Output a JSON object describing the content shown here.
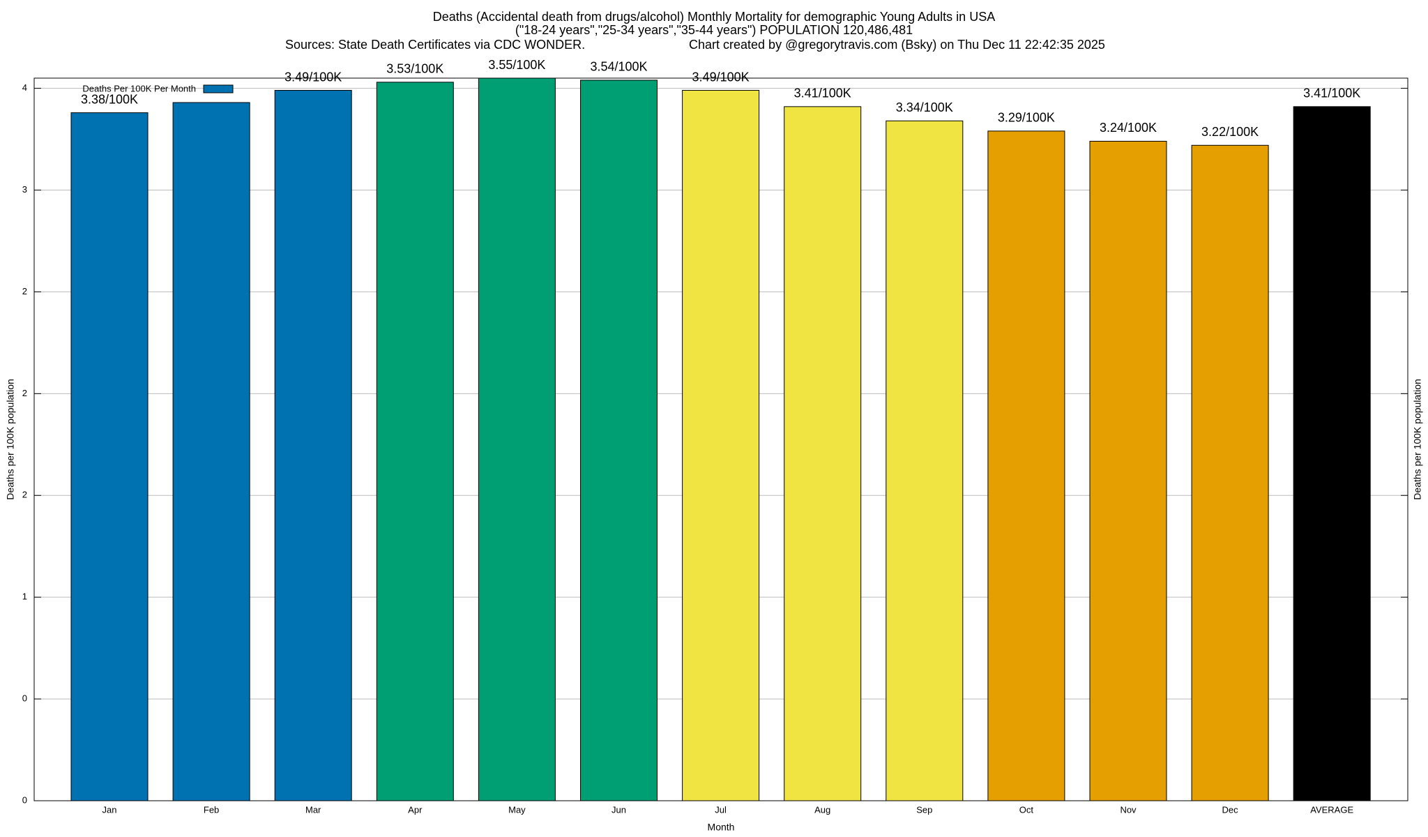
{
  "chart_data": {
    "type": "bar",
    "title": "Deaths (Accidental death from drugs/alcohol) Monthly Mortality for demographic Young Adults in USA",
    "subtitle": "(\"18-24 years\",\"25-34 years\",\"35-44 years\") POPULATION 120,486,481",
    "source": "Sources: State Death Certificates via CDC WONDER.",
    "credit": "Chart created by @gregorytravis.com (Bsky) on Thu Dec 11 22:42:35 2025",
    "x_label": "Month",
    "y_label": "Deaths per 100K population",
    "y2_label": "Deaths per 100K population",
    "categories": [
      "Jan",
      "Feb",
      "Mar",
      "Apr",
      "May",
      "Jun",
      "Jul",
      "Aug",
      "Sep",
      "Oct",
      "Nov",
      "Dec",
      "AVERAGE"
    ],
    "series": [
      {
        "name": "Deaths Per 100K Per Month",
        "color": "#0072b2",
        "colors": [
          "#0072b2",
          "#0072b2",
          "#0072b2",
          "#009e73",
          "#009e73",
          "#009e73",
          "#f0e442",
          "#f0e442",
          "#f0e442",
          "#e69f00",
          "#e69f00",
          "#e69f00",
          "#000000"
        ],
        "values": [
          3.38,
          3.43,
          3.49,
          3.53,
          3.55,
          3.54,
          3.49,
          3.41,
          3.34,
          3.29,
          3.24,
          3.22,
          3.41
        ],
        "value_labels": [
          "3.38/100K",
          null,
          "3.49/100K",
          "3.53/100K",
          "3.55/100K",
          "3.54/100K",
          "3.49/100K",
          "3.41/100K",
          "3.34/100K",
          "3.29/100K",
          "3.24/100K",
          "3.22/100K",
          "3.41/100K"
        ]
      }
    ],
    "ylim": [
      0,
      3.55
    ],
    "yticks": [
      0,
      {
        "value": 0.5,
        "label": "0"
      },
      1,
      {
        "value": 1.5,
        "label": "2"
      },
      2,
      {
        "value": 2.5,
        "label": "2"
      },
      3,
      {
        "value": 3.5,
        "label": "4"
      }
    ],
    "grid": true,
    "legend": "upper-left"
  }
}
